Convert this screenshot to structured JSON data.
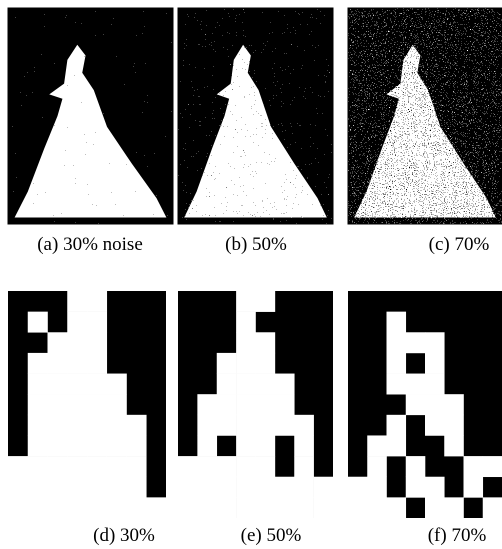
{
  "panels": [
    {
      "caption": "(a) 30% noise"
    },
    {
      "caption": "(b) 50%"
    },
    {
      "caption": "(c) 70%"
    },
    {
      "caption": "(d) 30%"
    },
    {
      "caption": "(e) 50%"
    },
    {
      "caption": "(f) 70%"
    }
  ]
}
